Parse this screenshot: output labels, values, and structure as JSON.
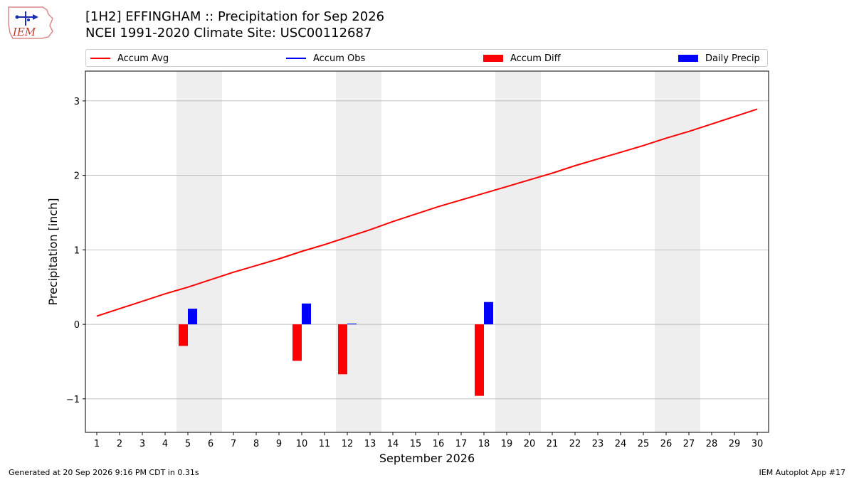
{
  "header": {
    "title_line1": "[1H2] EFFINGHAM :: Precipitation for Sep 2026",
    "title_line2": "NCEI 1991-2020 Climate Site: USC00112687",
    "logo_text": "IEM"
  },
  "legend": {
    "accum_avg": "Accum Avg",
    "accum_obs": "Accum Obs",
    "accum_diff": "Accum Diff",
    "daily_precip": "Daily Precip"
  },
  "colors": {
    "accum_avg": "#ff0000",
    "accum_obs": "#0000ff",
    "accum_diff": "#ff0000",
    "daily_precip": "#0000ff",
    "weekend_shade": "#eeeeee",
    "grid": "#b0b0b0"
  },
  "footer": {
    "left": "Generated at 20 Sep 2026 9:16 PM CDT in 0.31s",
    "right": "IEM Autoplot App #17"
  },
  "chart_data": {
    "type": "bar",
    "xlabel": "September 2026",
    "ylabel": "Precipitation [inch]",
    "ylim": [
      -1.45,
      3.4
    ],
    "xlim": [
      0.5,
      30.5
    ],
    "yticks": [
      -1,
      0,
      1,
      2,
      3
    ],
    "ytick_labels": [
      "−1",
      "0",
      "1",
      "2",
      "3"
    ],
    "xticks": [
      1,
      2,
      3,
      4,
      5,
      6,
      7,
      8,
      9,
      10,
      11,
      12,
      13,
      14,
      15,
      16,
      17,
      18,
      19,
      20,
      21,
      22,
      23,
      24,
      25,
      26,
      27,
      28,
      29,
      30
    ],
    "grid": "y",
    "legend_position": "top",
    "weekend_days": [
      5,
      6,
      12,
      13,
      19,
      20,
      26,
      27
    ],
    "series": [
      {
        "name": "Accum Avg",
        "kind": "line",
        "x": [
          1,
          2,
          3,
          4,
          5,
          6,
          7,
          8,
          9,
          10,
          11,
          12,
          13,
          14,
          15,
          16,
          17,
          18,
          19,
          20,
          21,
          22,
          23,
          24,
          25,
          26,
          27,
          28,
          29,
          30
        ],
        "values": [
          0.11,
          0.21,
          0.31,
          0.41,
          0.5,
          0.6,
          0.7,
          0.79,
          0.88,
          0.98,
          1.07,
          1.17,
          1.27,
          1.38,
          1.48,
          1.58,
          1.67,
          1.76,
          1.85,
          1.94,
          2.03,
          2.13,
          2.22,
          2.31,
          2.4,
          2.5,
          2.59,
          2.69,
          2.79,
          2.89
        ]
      },
      {
        "name": "Accum Obs",
        "kind": "line",
        "x": [],
        "values": []
      },
      {
        "name": "Accum Diff",
        "kind": "bar",
        "x": [
          5,
          10,
          12,
          18
        ],
        "values": [
          -0.29,
          -0.49,
          -0.67,
          -0.96
        ]
      },
      {
        "name": "Daily Precip",
        "kind": "bar",
        "x": [
          5,
          10,
          12,
          18
        ],
        "values": [
          0.21,
          0.28,
          0.01,
          0.3
        ]
      }
    ]
  }
}
